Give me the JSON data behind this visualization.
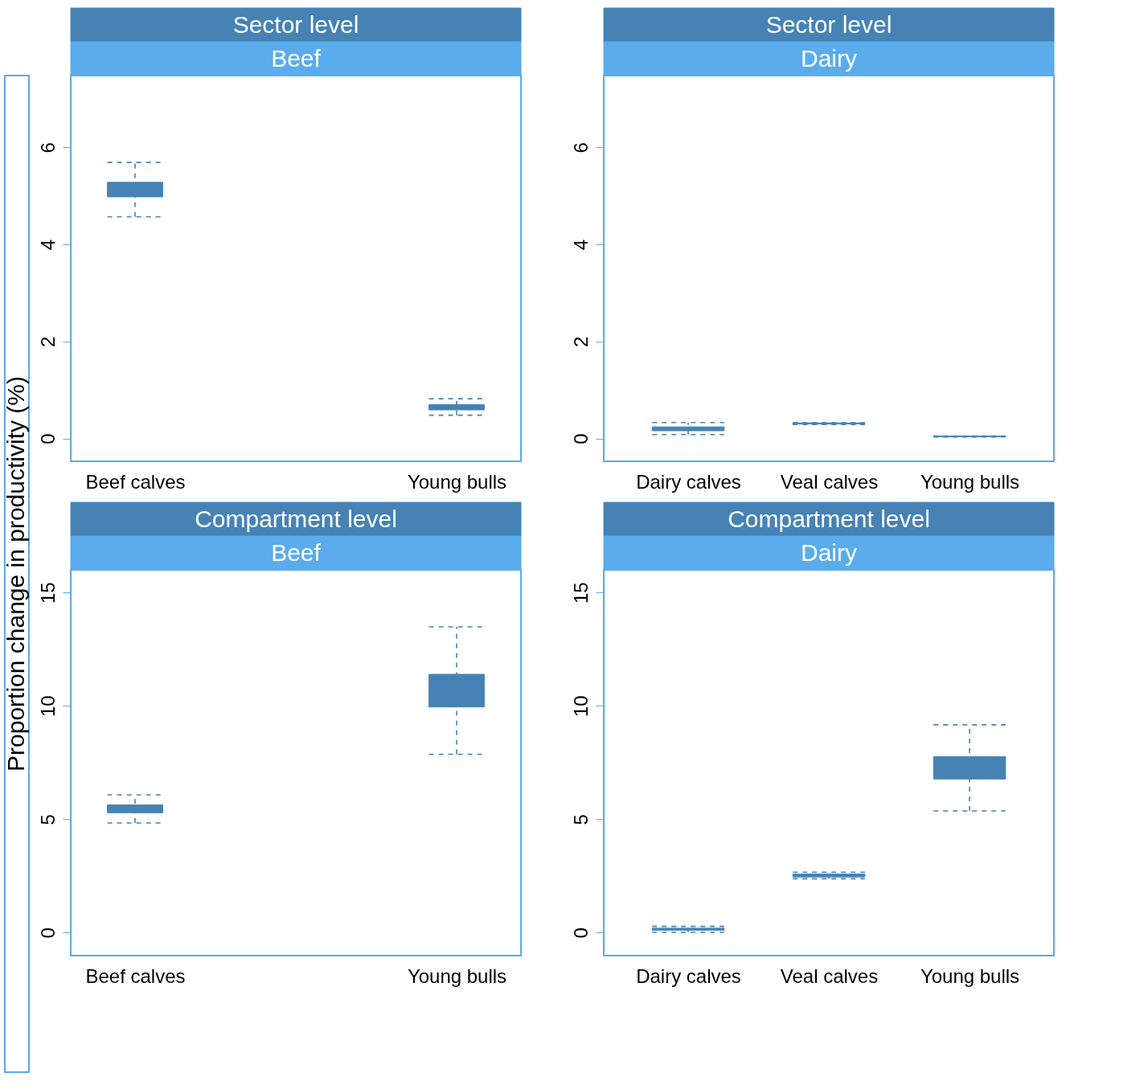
{
  "chart_data": [
    {
      "type": "box",
      "title": "Sector level",
      "subtitle": "Beef",
      "ylabel": "Proportion change in productivity (%)",
      "categories": [
        "Beef calves",
        "Young bulls"
      ],
      "ylim": [
        -0.47,
        7.48
      ],
      "yticks": [
        0,
        2,
        4,
        6
      ],
      "grid": false,
      "series": [
        {
          "color": "#4682b4",
          "boxes": [
            {
              "low": 4.57,
              "q1": 4.98,
              "median": 5.13,
              "q3": 5.28,
              "high": 5.69
            },
            {
              "low": 0.48,
              "q1": 0.59,
              "median": 0.65,
              "q3": 0.7,
              "high": 0.82
            }
          ]
        }
      ]
    },
    {
      "type": "box",
      "title": "Sector level",
      "subtitle": "Dairy",
      "categories": [
        "Dairy calves",
        "Veal calves",
        "Young bulls"
      ],
      "ylim": [
        -0.47,
        7.48
      ],
      "yticks": [
        0,
        2,
        4,
        6
      ],
      "grid": false,
      "series": [
        {
          "color": "#4682b4",
          "boxes": [
            {
              "low": 0.08,
              "q1": 0.16,
              "median": 0.2,
              "q3": 0.24,
              "high": 0.33
            },
            {
              "low": 0.29,
              "q1": 0.3,
              "median": 0.31,
              "q3": 0.32,
              "high": 0.33
            },
            {
              "low": 0.03,
              "q1": 0.04,
              "median": 0.04,
              "q3": 0.05,
              "high": 0.05
            }
          ]
        }
      ]
    },
    {
      "type": "box",
      "title": "Compartment level",
      "subtitle": "Beef",
      "categories": [
        "Beef calves",
        "Young bulls"
      ],
      "ylim": [
        -1.02,
        16.0
      ],
      "yticks": [
        0,
        5,
        10,
        15
      ],
      "grid": false,
      "series": [
        {
          "color": "#4682b4",
          "boxes": [
            {
              "low": 4.83,
              "q1": 5.28,
              "median": 5.45,
              "q3": 5.63,
              "high": 6.07
            },
            {
              "low": 7.86,
              "q1": 9.95,
              "median": 10.6,
              "q3": 11.39,
              "high": 13.48
            }
          ]
        }
      ]
    },
    {
      "type": "box",
      "title": "Compartment level",
      "subtitle": "Dairy",
      "categories": [
        "Dairy calves",
        "Veal calves",
        "Young bulls"
      ],
      "ylim": [
        -1.02,
        16.0
      ],
      "yticks": [
        0,
        5,
        10,
        15
      ],
      "grid": false,
      "series": [
        {
          "color": "#4682b4",
          "boxes": [
            {
              "low": 0.01,
              "q1": 0.1,
              "median": 0.15,
              "q3": 0.19,
              "high": 0.27
            },
            {
              "low": 2.37,
              "q1": 2.45,
              "median": 2.52,
              "q3": 2.58,
              "high": 2.66
            },
            {
              "low": 5.36,
              "q1": 6.77,
              "median": 7.3,
              "q3": 7.76,
              "high": 9.16
            }
          ]
        }
      ]
    }
  ]
}
